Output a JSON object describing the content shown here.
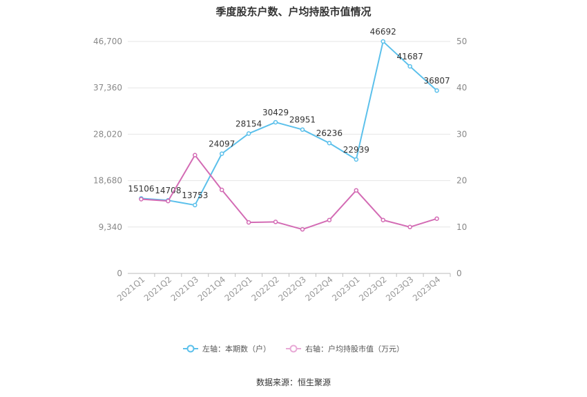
{
  "chart_data": {
    "type": "line",
    "title": "季度股东户数、户均持股市值情况",
    "categories": [
      "2021Q1",
      "2021Q2",
      "2021Q3",
      "2021Q4",
      "2022Q1",
      "2022Q2",
      "2022Q3",
      "2022Q4",
      "2023Q1",
      "2023Q2",
      "2023Q3",
      "2023Q4"
    ],
    "left_axis": {
      "ticks": [
        "0",
        "9,340",
        "18,680",
        "28,020",
        "37,360",
        "46,700"
      ],
      "ylim": [
        0,
        46700
      ]
    },
    "right_axis": {
      "ticks": [
        "0",
        "10",
        "20",
        "30",
        "40",
        "50"
      ],
      "ylim": [
        0,
        50
      ]
    },
    "series": [
      {
        "name": "左轴：本期数（户）",
        "axis": "left",
        "color": "#5bc0eb",
        "values": [
          15106,
          14708,
          13753,
          24097,
          28154,
          30429,
          28951,
          26236,
          22939,
          46692,
          41687,
          36807
        ],
        "show_labels": true
      },
      {
        "name": "右轴：户均持股市值（万元）",
        "axis": "right",
        "color": "#d36bb4",
        "values": [
          16.0,
          15.6,
          25.5,
          18.0,
          11.0,
          11.1,
          9.5,
          11.5,
          17.9,
          11.5,
          10.0,
          11.8
        ],
        "show_labels": false
      }
    ],
    "grid": true,
    "legend_position": "bottom"
  },
  "source": "数据来源：恒生聚源"
}
